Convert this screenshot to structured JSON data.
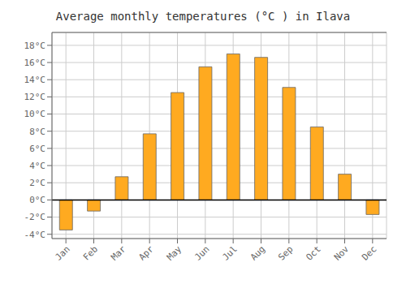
{
  "chart_data": {
    "type": "bar",
    "title": "Average monthly temperatures (°C ) in Ilava",
    "categories": [
      "Jan",
      "Feb",
      "Mar",
      "Apr",
      "May",
      "Jun",
      "Jul",
      "Aug",
      "Sep",
      "Oct",
      "Nov",
      "Dec"
    ],
    "values": [
      -3.5,
      -1.3,
      2.7,
      7.7,
      12.5,
      15.5,
      17.0,
      16.6,
      13.1,
      8.5,
      3.0,
      -1.7
    ],
    "color": "#FFAA20",
    "ylim": [
      -4.5,
      19.5
    ],
    "yticks": [
      {
        "value": -4,
        "label": "-4°C"
      },
      {
        "value": -2,
        "label": "-2°C"
      },
      {
        "value": 0,
        "label": "0°C"
      },
      {
        "value": 2,
        "label": "2°C"
      },
      {
        "value": 4,
        "label": "4°C"
      },
      {
        "value": 6,
        "label": "6°C"
      },
      {
        "value": 8,
        "label": "8°C"
      },
      {
        "value": 10,
        "label": "10°C"
      },
      {
        "value": 12,
        "label": "12°C"
      },
      {
        "value": 14,
        "label": "14°C"
      },
      {
        "value": 16,
        "label": "16°C"
      },
      {
        "value": 18,
        "label": "18°C"
      }
    ],
    "grid": true
  }
}
